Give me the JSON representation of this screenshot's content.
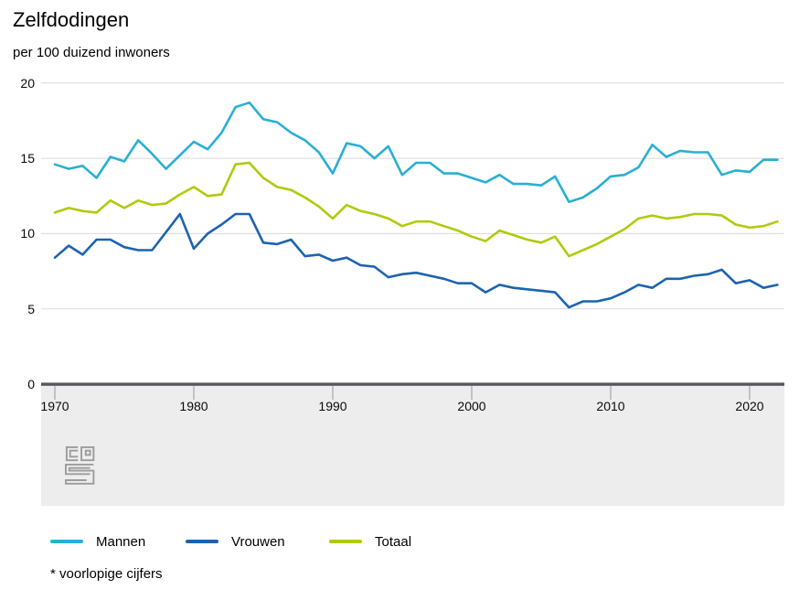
{
  "header": {
    "title": "Zelfdodingen",
    "subtitle": "per 100 duizend inwoners"
  },
  "footnote": "* voorlopige cijfers",
  "branding": {
    "logo": "cbs-logo"
  },
  "colors": {
    "mannen": "#29afd4",
    "vrouwen": "#1d63b0",
    "totaal": "#b1ca0c",
    "gridline": "#d9d9d9",
    "axis": "#55575a",
    "tick": "#b3b3b3",
    "band": "#ededed",
    "logo": "#9c9c9c",
    "text": "#000000"
  },
  "chart_data": {
    "type": "line",
    "title": "Zelfdodingen",
    "xlabel": "",
    "ylabel": "per 100 duizend inwoners",
    "ylim": [
      0,
      20
    ],
    "y_ticks": [
      0,
      5,
      10,
      15,
      20
    ],
    "x_ticks": [
      1970,
      1980,
      1990,
      2000,
      2010,
      2020
    ],
    "grid": "horizontal",
    "legend_position": "bottom",
    "years": [
      1970,
      1971,
      1972,
      1973,
      1974,
      1975,
      1976,
      1977,
      1978,
      1979,
      1980,
      1981,
      1982,
      1983,
      1984,
      1985,
      1986,
      1987,
      1988,
      1989,
      1990,
      1991,
      1992,
      1993,
      1994,
      1995,
      1996,
      1997,
      1998,
      1999,
      2000,
      2001,
      2002,
      2003,
      2004,
      2005,
      2006,
      2007,
      2008,
      2009,
      2010,
      2011,
      2012,
      2013,
      2014,
      2015,
      2016,
      2017,
      2018,
      2019,
      2020,
      2021,
      2022
    ],
    "series": [
      {
        "name": "Mannen",
        "color": "#29afd4",
        "values": [
          14.6,
          14.3,
          14.5,
          13.7,
          15.1,
          14.8,
          16.2,
          15.3,
          14.3,
          15.2,
          16.1,
          15.6,
          16.7,
          18.4,
          18.7,
          17.6,
          17.4,
          16.7,
          16.2,
          15.4,
          14.0,
          16.0,
          15.8,
          15.0,
          15.8,
          13.9,
          14.7,
          14.7,
          14.0,
          14.0,
          13.7,
          13.4,
          13.9,
          13.3,
          13.3,
          13.2,
          13.8,
          12.1,
          12.4,
          13.0,
          13.8,
          13.9,
          14.4,
          15.9,
          15.1,
          15.5,
          15.4,
          15.4,
          13.9,
          14.2,
          14.1,
          14.9,
          14.9
        ]
      },
      {
        "name": "Vrouwen",
        "color": "#1d63b0",
        "values": [
          8.4,
          9.2,
          8.6,
          9.6,
          9.6,
          9.1,
          8.9,
          8.9,
          10.1,
          11.3,
          9.0,
          10.0,
          10.6,
          11.3,
          11.3,
          9.4,
          9.3,
          9.6,
          8.5,
          8.6,
          8.2,
          8.4,
          7.9,
          7.8,
          7.1,
          7.3,
          7.4,
          7.2,
          7.0,
          6.7,
          6.7,
          6.1,
          6.6,
          6.4,
          6.3,
          6.2,
          6.1,
          5.1,
          5.5,
          5.5,
          5.7,
          6.1,
          6.6,
          6.4,
          7.0,
          7.0,
          7.2,
          7.3,
          7.6,
          6.7,
          6.9,
          6.4,
          6.6
        ]
      },
      {
        "name": "Totaal",
        "color": "#b1ca0c",
        "values": [
          11.4,
          11.7,
          11.5,
          11.4,
          12.2,
          11.7,
          12.2,
          11.9,
          12.0,
          12.6,
          13.1,
          12.5,
          12.6,
          14.6,
          14.7,
          13.7,
          13.1,
          12.9,
          12.4,
          11.8,
          11.0,
          11.9,
          11.5,
          11.3,
          11.0,
          10.5,
          10.8,
          10.8,
          10.5,
          10.2,
          9.8,
          9.5,
          10.2,
          9.9,
          9.6,
          9.4,
          9.8,
          8.5,
          8.9,
          9.3,
          9.8,
          10.3,
          11.0,
          11.2,
          11.0,
          11.1,
          11.3,
          11.3,
          11.2,
          10.6,
          10.4,
          10.5,
          10.8
        ]
      }
    ]
  }
}
